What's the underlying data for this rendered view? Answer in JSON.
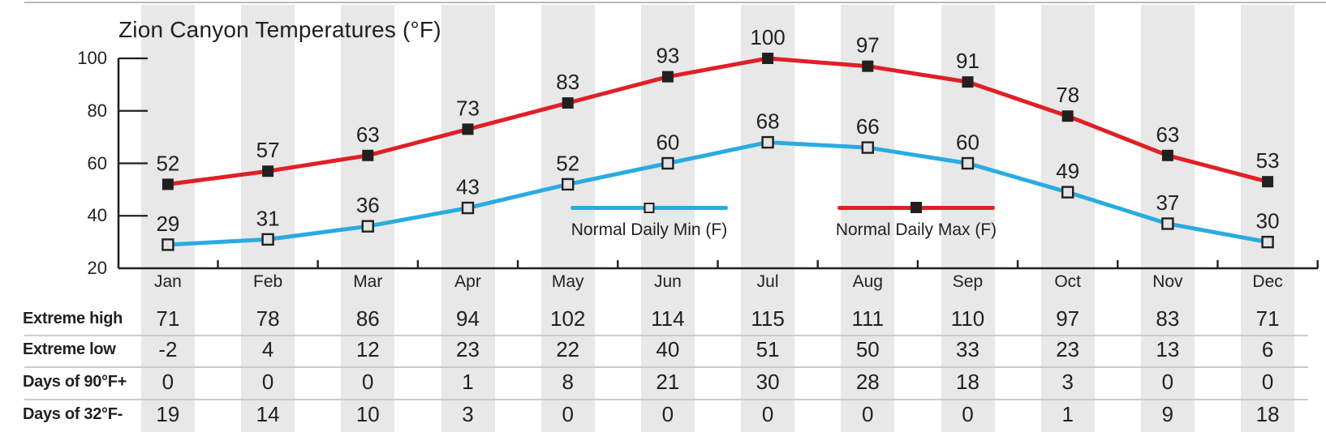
{
  "title": "Zion Canyon Temperatures (°F)",
  "chart_data": {
    "type": "line",
    "categories": [
      "Jan",
      "Feb",
      "Mar",
      "Apr",
      "May",
      "Jun",
      "Jul",
      "Aug",
      "Sep",
      "Oct",
      "Nov",
      "Dec"
    ],
    "series": [
      {
        "name": "Normal Daily Max (F)",
        "color": "#e01f26",
        "marker": "filled-black-square",
        "values": [
          52,
          57,
          63,
          73,
          83,
          93,
          100,
          97,
          91,
          78,
          63,
          53
        ]
      },
      {
        "name": "Normal Daily Min (F)",
        "color": "#29abe2",
        "marker": "light-gray-square",
        "values": [
          29,
          31,
          36,
          43,
          52,
          60,
          68,
          66,
          60,
          49,
          37,
          30
        ]
      }
    ],
    "title": "Zion Canyon Temperatures (°F)",
    "xlabel": "",
    "ylabel": "",
    "yticks": [
      100,
      80,
      60,
      40,
      20
    ],
    "ylim": [
      20,
      104
    ],
    "grid": "off",
    "point_labels": "value above each marker",
    "legend_position": "inside-center",
    "background": "alternating vertical gray stripes, one per month"
  },
  "table": {
    "rows": [
      {
        "label": "Extreme high",
        "values": [
          "71",
          "78",
          "86",
          "94",
          "102",
          "114",
          "115",
          "111",
          "110",
          "97",
          "83",
          "71"
        ]
      },
      {
        "label": "Extreme low",
        "values": [
          "-2",
          "4",
          "12",
          "23",
          "22",
          "40",
          "51",
          "50",
          "33",
          "23",
          "13",
          "6"
        ]
      },
      {
        "label": "Days of 90°F+",
        "values": [
          "0",
          "0",
          "0",
          "1",
          "8",
          "21",
          "30",
          "28",
          "18",
          "3",
          "0",
          "0"
        ]
      },
      {
        "label": "Days of 32°F-",
        "values": [
          "19",
          "14",
          "10",
          "3",
          "0",
          "0",
          "0",
          "0",
          "0",
          "1",
          "9",
          "18"
        ]
      }
    ]
  },
  "colors": {
    "max_line": "#e01f26",
    "min_line": "#29abe2",
    "marker_dark": "#231f20",
    "marker_light_fill": "#e3e3e3",
    "stripe": "#e8e8e8",
    "text": "#231f20",
    "axis": "#231f20",
    "separator": "#cbcbcb",
    "top_rule": "#b9b9b9"
  }
}
